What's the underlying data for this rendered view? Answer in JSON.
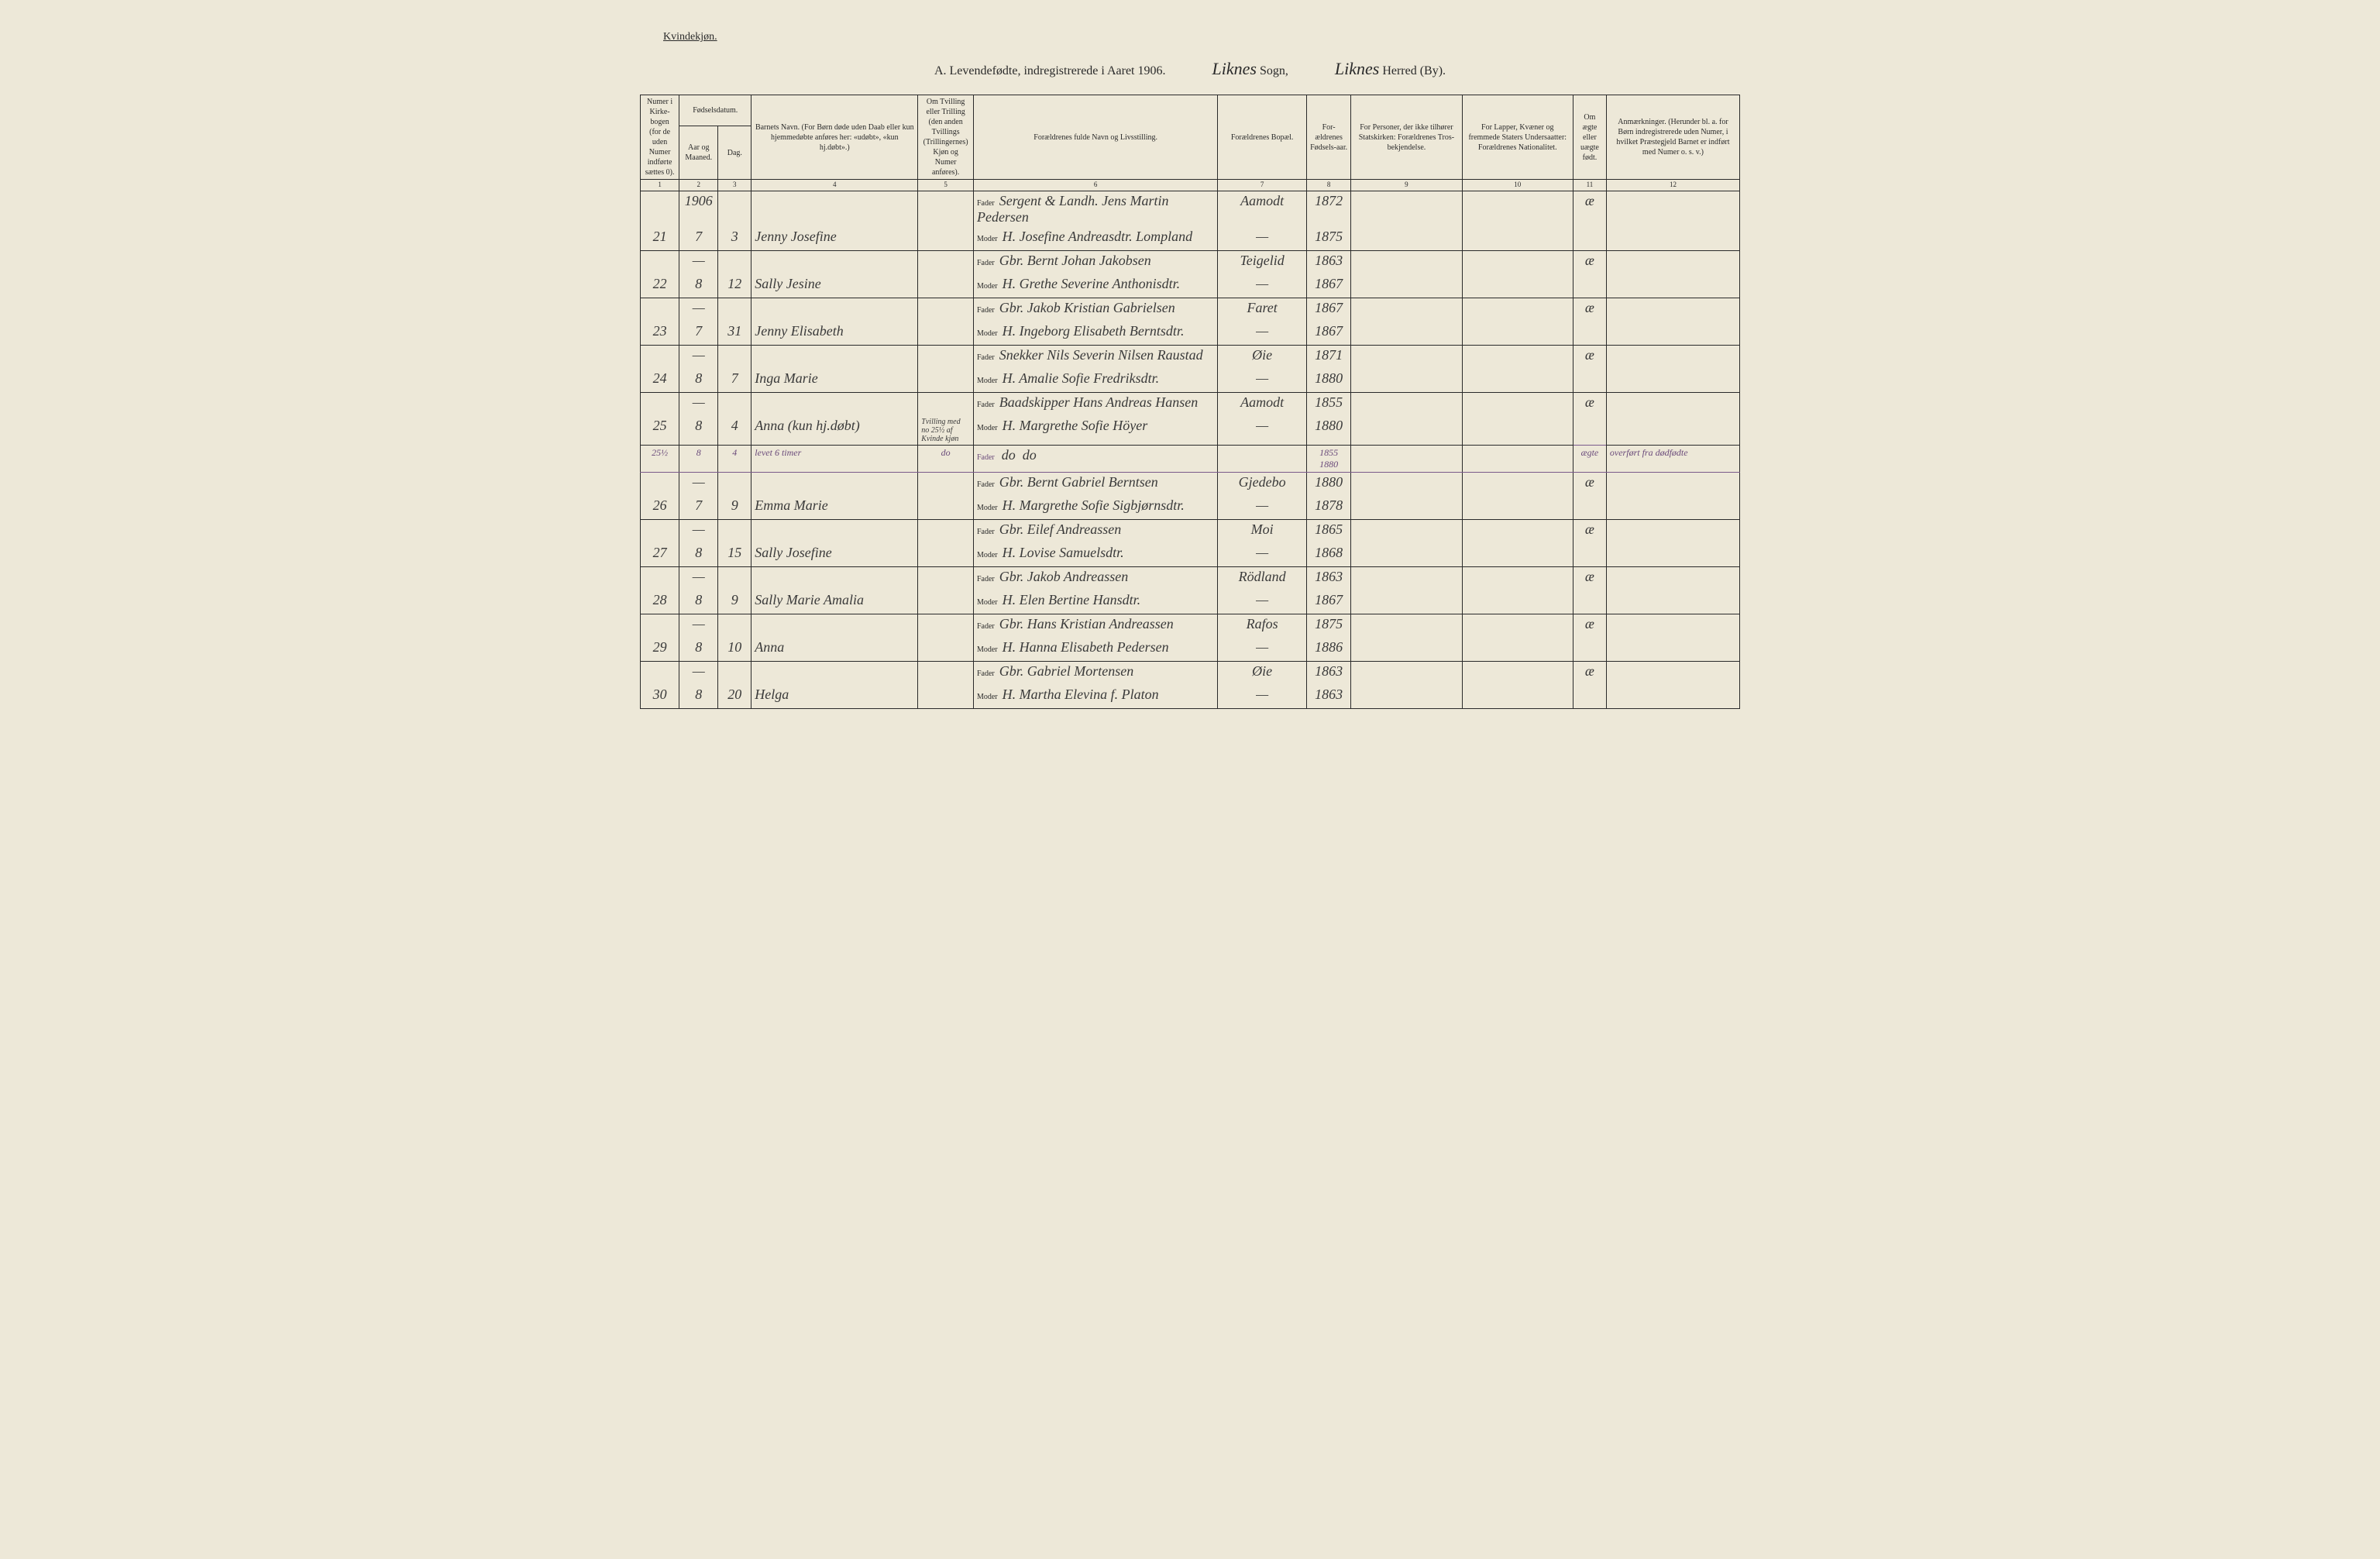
{
  "header": {
    "gender_label": "Kvindekjøn.",
    "title": "A. Levendefødte, indregistrerede i Aaret 1906.",
    "sogn_value": "Liknes",
    "sogn_label": "Sogn,",
    "herred_value": "Liknes",
    "herred_label": "Herred (By)."
  },
  "columns": {
    "c1": "Numer i Kirke-bogen (for de uden Numer indførte sættes 0).",
    "c2_top": "Fødselsdatum.",
    "c2": "Aar og Maaned.",
    "c3": "Dag.",
    "c4": "Barnets Navn.\n(For Børn døde uden Daab eller kun hjemmedøbte anføres her: «udøbt», «kun hj.døbt».)",
    "c5": "Om Tvilling eller Trilling (den anden Tvillings (Trillingernes) Kjøn og Numer anføres).",
    "c6": "Forældrenes fulde Navn og Livsstilling.",
    "c7": "Forældrenes Bopæl.",
    "c8": "For-ældrenes Fødsels-aar.",
    "c9": "For Personer, der ikke tilhører Statskirken: Forældrenes Tros-bekjendelse.",
    "c10": "For Lapper, Kvæner og fremmede Staters Undersaatter: Forældrenes Nationalitet.",
    "c11": "Om ægte eller uægte født.",
    "c12": "Anmærkninger.\n(Herunder bl. a. for Børn indregistrerede uden Numer, i hvilket Præstegjeld Barnet er indført med Numer o. s. v.)"
  },
  "colnums": [
    "1",
    "2",
    "3",
    "4",
    "5",
    "6",
    "7",
    "8",
    "9",
    "10",
    "11",
    "12"
  ],
  "year_header": "1906",
  "rows": [
    {
      "num": "21",
      "month": "7",
      "day": "3",
      "name": "Jenny Josefine",
      "twin": "",
      "father": "Sergent & Landh. Jens Martin Pedersen",
      "mother": "H. Josefine Andreasdtr.  Lompland",
      "place_f": "Aamodt",
      "place_m": "—",
      "year_f": "1872",
      "year_m": "1875",
      "legit": "æ"
    },
    {
      "num": "22",
      "month": "8",
      "day": "12",
      "name": "Sally Jesine",
      "twin": "",
      "father": "Gbr. Bernt Johan Jakobsen",
      "mother": "H. Grethe Severine Anthonisdtr.",
      "place_f": "Teigelid",
      "place_m": "—",
      "year_f": "1863",
      "year_m": "1867",
      "legit": "æ"
    },
    {
      "num": "23",
      "month": "7",
      "day": "31",
      "name": "Jenny Elisabeth",
      "twin": "",
      "father": "Gbr. Jakob Kristian Gabrielsen",
      "mother": "H. Ingeborg Elisabeth Berntsdtr.",
      "place_f": "Faret",
      "place_m": "—",
      "year_f": "1867",
      "year_m": "1867",
      "legit": "æ"
    },
    {
      "num": "24",
      "month": "8",
      "day": "7",
      "name": "Inga Marie",
      "twin": "",
      "father": "Snekker Nils Severin Nilsen Raustad",
      "mother": "H. Amalie Sofie Fredriksdtr.",
      "place_f": "Øie",
      "place_m": "—",
      "year_f": "1871",
      "year_m": "1880",
      "legit": "æ"
    },
    {
      "num": "25",
      "month": "8",
      "day": "4",
      "name": "Anna (kun hj.døbt)",
      "twin": "Tvilling med no 25½ af Kvinde kjøn",
      "father": "Baadskipper Hans Andreas Hansen",
      "mother": "H. Margrethe Sofie Höyer",
      "place_f": "Aamodt",
      "place_m": "—",
      "year_f": "1855",
      "year_m": "1880",
      "legit": "æ"
    },
    {
      "insert": true,
      "num": "25½",
      "month": "8",
      "day": "4",
      "name": "levet 6 timer",
      "twin": "do",
      "father": "do",
      "mother": "do",
      "place_f": "",
      "place_m": "",
      "year_f": "1855",
      "year_m": "1880",
      "legit": "ægte",
      "note": "overført fra dødfødte"
    },
    {
      "num": "26",
      "month": "7",
      "day": "9",
      "name": "Emma Marie",
      "twin": "",
      "father": "Gbr. Bernt Gabriel Berntsen",
      "mother": "H. Margrethe Sofie Sigbjørnsdtr.",
      "place_f": "Gjedebo",
      "place_m": "—",
      "year_f": "1880",
      "year_m": "1878",
      "legit": "æ"
    },
    {
      "num": "27",
      "month": "8",
      "day": "15",
      "name": "Sally Josefine",
      "twin": "",
      "father": "Gbr. Eilef Andreassen",
      "mother": "H. Lovise Samuelsdtr.",
      "place_f": "Moi",
      "place_m": "—",
      "year_f": "1865",
      "year_m": "1868",
      "legit": "æ"
    },
    {
      "num": "28",
      "month": "8",
      "day": "9",
      "name": "Sally Marie Amalia",
      "twin": "",
      "father": "Gbr. Jakob Andreassen",
      "mother": "H. Elen Bertine Hansdtr.",
      "place_f": "Rödland",
      "place_m": "—",
      "year_f": "1863",
      "year_m": "1867",
      "legit": "æ"
    },
    {
      "num": "29",
      "month": "8",
      "day": "10",
      "name": "Anna",
      "twin": "",
      "father": "Gbr. Hans Kristian Andreassen",
      "mother": "H. Hanna Elisabeth Pedersen",
      "place_f": "Rafos",
      "place_m": "—",
      "year_f": "1875",
      "year_m": "1886",
      "legit": "æ"
    },
    {
      "num": "30",
      "month": "8",
      "day": "20",
      "name": "Helga",
      "twin": "",
      "father": "Gbr. Gabriel Mortensen",
      "mother": "H. Martha Elevina f. Platon",
      "place_f": "Øie",
      "place_m": "—",
      "year_f": "1863",
      "year_m": "1863",
      "legit": "æ"
    }
  ],
  "labels": {
    "father": "Fader",
    "mother": "Moder"
  }
}
